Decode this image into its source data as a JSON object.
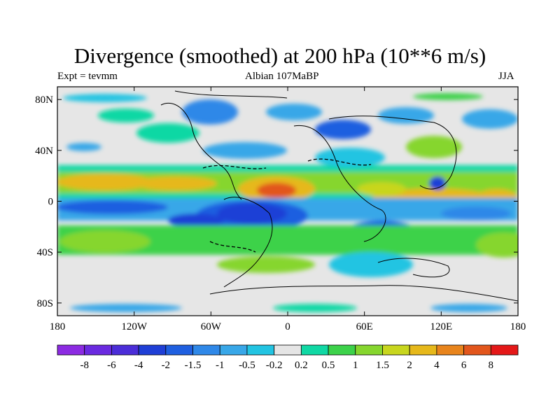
{
  "title": "Divergence (smoothed) at 200 hPa (10**6 m/s)",
  "left_label": "Expt = tevmm",
  "center_label": "Albian   107MaBP",
  "right_label": "JJA",
  "lat_labels": [
    "80N",
    "40N",
    "0",
    "40S",
    "80S"
  ],
  "lat_values": [
    80,
    40,
    0,
    -40,
    -80
  ],
  "lon_labels": [
    "180",
    "120W",
    "60W",
    "0",
    "60E",
    "120E",
    "180"
  ],
  "lon_values": [
    -180,
    -120,
    -60,
    0,
    60,
    120,
    180
  ],
  "colorbar": {
    "labels": [
      "-8",
      "-6",
      "-4",
      "-2",
      "-1.5",
      "-1",
      "-0.5",
      "-0.2",
      "0.2",
      "0.5",
      "1",
      "1.5",
      "2",
      "4",
      "6",
      "8"
    ],
    "colors": [
      "#8c2be2",
      "#6a2ae0",
      "#4b2dd8",
      "#1f3fd6",
      "#1f5fe0",
      "#2f88e8",
      "#38a7e8",
      "#22c4e2",
      "#e5e5e5",
      "#10d8a4",
      "#3cd24a",
      "#86d62e",
      "#c8d61e",
      "#e6b81a",
      "#e8841c",
      "#e2561c",
      "#e41818"
    ]
  },
  "colors": {
    "background": "#e6e6e6",
    "coast": "#000000"
  }
}
